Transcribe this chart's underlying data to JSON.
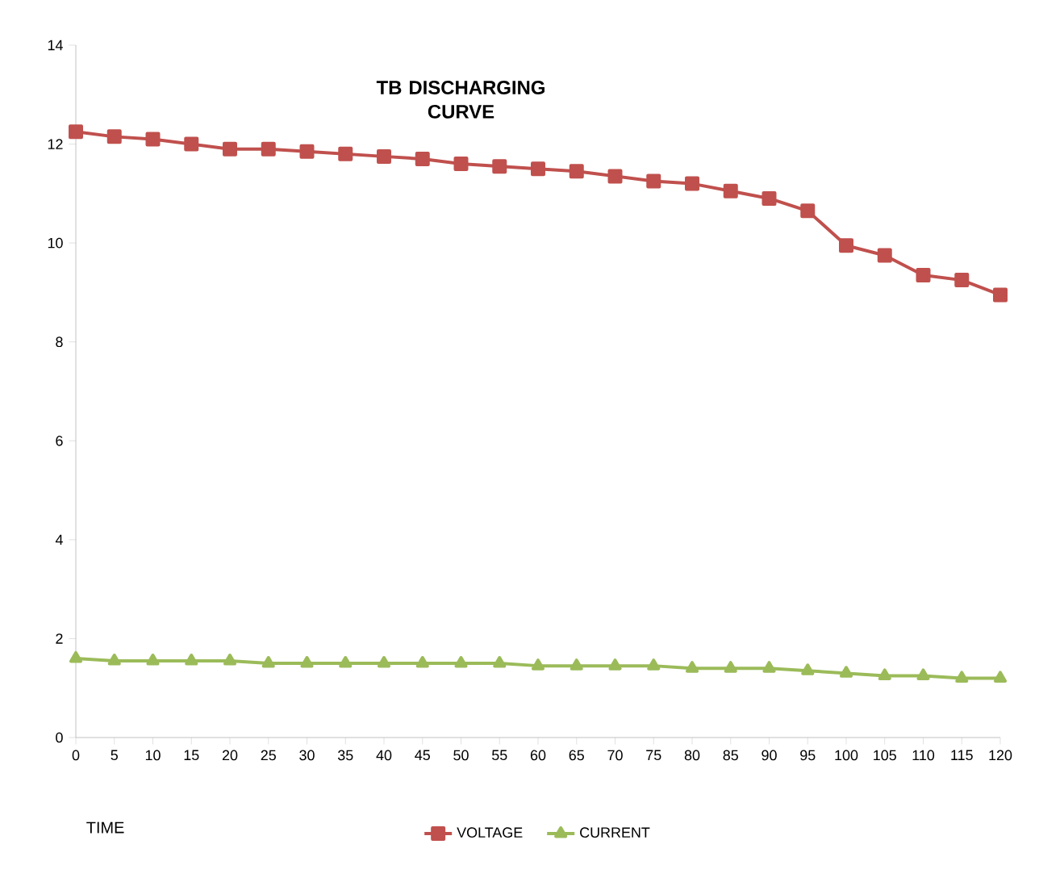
{
  "chart_data": {
    "type": "line",
    "title": "**TB DISCHARGING CURVE**",
    "xlabel": "TIME",
    "x": [
      0,
      5,
      10,
      15,
      20,
      25,
      30,
      35,
      40,
      45,
      50,
      55,
      60,
      65,
      70,
      75,
      80,
      85,
      90,
      95,
      100,
      105,
      110,
      115,
      120
    ],
    "series": [
      {
        "name": "VOLTAGE",
        "color": "#c0504d",
        "marker": "square",
        "values": [
          12.25,
          12.15,
          12.1,
          12.0,
          11.9,
          11.9,
          11.85,
          11.8,
          11.75,
          11.7,
          11.6,
          11.55,
          11.5,
          11.45,
          11.35,
          11.25,
          11.2,
          11.05,
          10.9,
          10.65,
          9.95,
          9.75,
          9.35,
          9.25,
          8.95
        ]
      },
      {
        "name": "CURRENT",
        "color": "#9bbb59",
        "marker": "triangle",
        "values": [
          1.6,
          1.55,
          1.55,
          1.55,
          1.55,
          1.5,
          1.5,
          1.5,
          1.5,
          1.5,
          1.5,
          1.5,
          1.45,
          1.45,
          1.45,
          1.45,
          1.4,
          1.4,
          1.4,
          1.35,
          1.3,
          1.25,
          1.25,
          1.2,
          1.2
        ]
      }
    ],
    "xlim": [
      0,
      120
    ],
    "xticks": [
      0,
      5,
      10,
      15,
      20,
      25,
      30,
      35,
      40,
      45,
      50,
      55,
      60,
      65,
      70,
      75,
      80,
      85,
      90,
      95,
      100,
      105,
      110,
      115,
      120
    ],
    "ylim": [
      0,
      14
    ],
    "yticks": [
      0,
      2,
      4,
      6,
      8,
      10,
      12,
      14
    ],
    "grid": false,
    "legend": "bottom",
    "line_style": "solid"
  }
}
